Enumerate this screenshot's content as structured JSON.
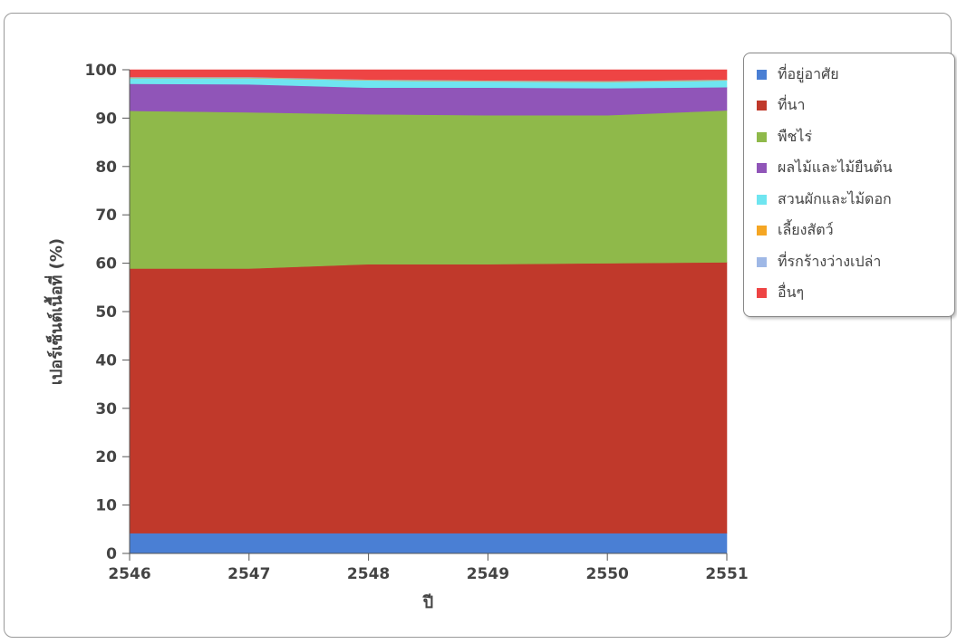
{
  "chart_data": {
    "type": "area",
    "stacked": true,
    "x": [
      2546,
      2547,
      2548,
      2549,
      2550,
      2551
    ],
    "xlabel": "ปี",
    "ylabel": "เปอร์เซ็นต์เนื้อที่ (%)",
    "ylim": [
      0,
      100
    ],
    "yticks": [
      0,
      10,
      20,
      30,
      40,
      50,
      60,
      70,
      80,
      90,
      100
    ],
    "grid": false,
    "legend_position": "right",
    "series": [
      {
        "name": "ที่อยู่อาศัย",
        "color": "#4a7fd4",
        "values": [
          4.2,
          4.2,
          4.2,
          4.2,
          4.2,
          4.2
        ]
      },
      {
        "name": "ที่นา",
        "color": "#c0392b",
        "values": [
          54.7,
          54.7,
          55.6,
          55.6,
          55.8,
          56.0
        ]
      },
      {
        "name": "พืชไร่",
        "color": "#8fb94a",
        "values": [
          32.6,
          32.3,
          31.0,
          30.8,
          30.6,
          31.4
        ]
      },
      {
        "name": "ผลไม้และไม้ยืนต้น",
        "color": "#9055b8",
        "values": [
          5.6,
          5.8,
          5.5,
          5.7,
          5.6,
          4.8
        ]
      },
      {
        "name": "สวนผักและไม้ดอก",
        "color": "#6fe5f0",
        "values": [
          1.2,
          1.3,
          1.5,
          1.3,
          1.3,
          1.4
        ]
      },
      {
        "name": "เลี้ยงสัตว์",
        "color": "#f5a623",
        "values": [
          0.1,
          0.1,
          0.1,
          0.1,
          0.1,
          0.1
        ]
      },
      {
        "name": "ที่รกร้างว่างเปล่า",
        "color": "#9fb8e6",
        "values": [
          0.1,
          0.1,
          0.1,
          0.1,
          0.1,
          0.1
        ]
      },
      {
        "name": "อื่นๆ",
        "color": "#ee4444",
        "values": [
          1.5,
          1.5,
          2.0,
          2.2,
          2.3,
          2.0
        ]
      }
    ]
  }
}
